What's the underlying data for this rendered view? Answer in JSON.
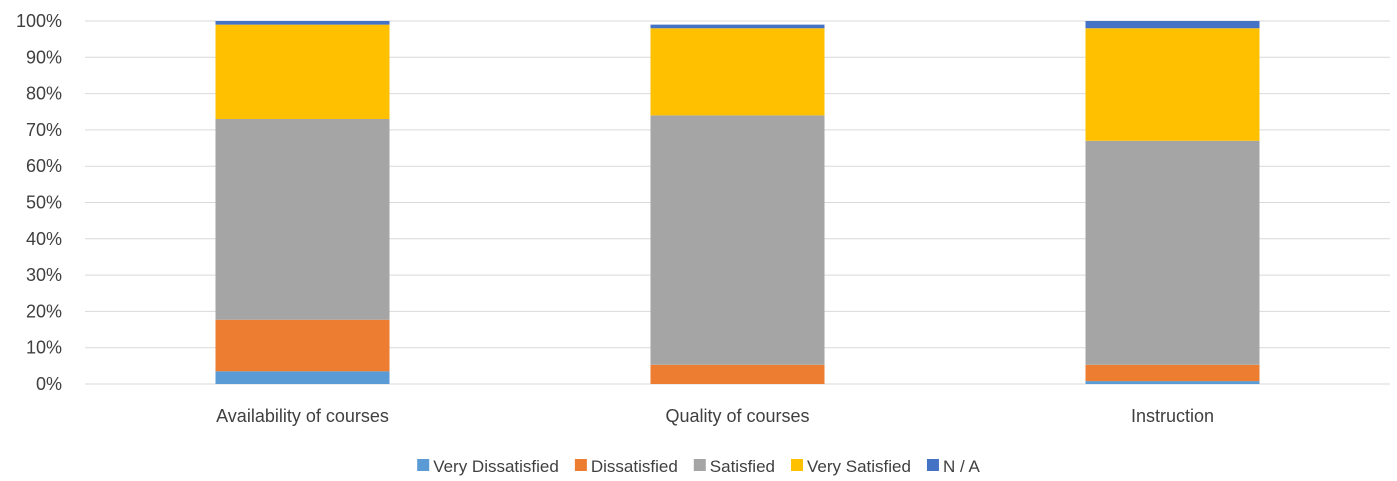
{
  "chart_data": {
    "type": "bar",
    "stacked": true,
    "percent_stacked": true,
    "categories": [
      "Availability of courses",
      "Quality of courses",
      "Instruction"
    ],
    "series": [
      {
        "name": "Very Dissatisfied",
        "color": "#5B9BD5",
        "values": [
          3.5,
          0,
          0.8
        ]
      },
      {
        "name": "Dissatisfied",
        "color": "#ED7D31",
        "values": [
          14.2,
          5.3,
          4.5
        ]
      },
      {
        "name": "Satisfied",
        "color": "#A5A5A5",
        "values": [
          55.3,
          68.7,
          61.7
        ]
      },
      {
        "name": "Very Satisfied",
        "color": "#FFC000",
        "values": [
          26,
          24,
          31
        ]
      },
      {
        "name": "N / A",
        "color": "#4472C4",
        "values": [
          1,
          1,
          2
        ]
      }
    ],
    "yticks": [
      "0%",
      "10%",
      "20%",
      "30%",
      "40%",
      "50%",
      "60%",
      "70%",
      "80%",
      "90%",
      "100%"
    ],
    "ylim": [
      0,
      100
    ],
    "grid": true,
    "legend_position": "bottom"
  }
}
